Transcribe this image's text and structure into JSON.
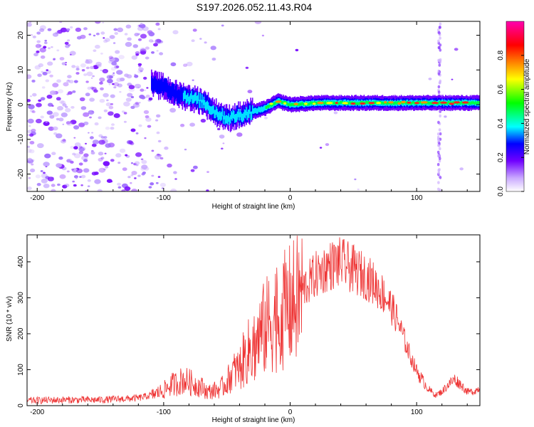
{
  "title": "S197.2026.052.11.43.R04",
  "chart_data": [
    {
      "type": "heatmap",
      "name": "spectrogram",
      "xlabel": "Height of straight line (km)",
      "ylabel": "Frequency (Hz)",
      "xlim": [
        -208,
        150
      ],
      "ylim": [
        -25,
        24
      ],
      "xticks": [
        -200,
        -100,
        0,
        100
      ],
      "yticks": [
        -20,
        -10,
        0,
        10,
        20
      ],
      "colorbar": {
        "label": "Normalized spectral amplitude",
        "range": [
          0,
          1
        ],
        "ticks": [
          0,
          0.2,
          0.4,
          0.6,
          0.8
        ],
        "tick_labels": [
          "0.0",
          "0.2",
          "0.4",
          "0.6",
          "0.8"
        ],
        "colors": [
          "#ffffff",
          "#d9b3ff",
          "#7000ff",
          "#0000ff",
          "#00ffff",
          "#00ff00",
          "#ffff00",
          "#ff8000",
          "#ff0000",
          "#ff00b0"
        ]
      },
      "ridge": {
        "x": [
          -110,
          -100,
          -90,
          -80,
          -70,
          -60,
          -50,
          -40,
          -30,
          -20,
          -10,
          0,
          20,
          50,
          100,
          150
        ],
        "y": [
          6,
          5,
          3,
          2,
          1,
          -2,
          -4,
          -3,
          -2,
          -1,
          1,
          0,
          0.5,
          0.5,
          0.5,
          0.5
        ]
      },
      "vertical_streak_x": 118
    },
    {
      "type": "line",
      "name": "snr",
      "xlabel": "Height of straight line (km)",
      "ylabel": "SNR (10 * v/v)",
      "xlim": [
        -208,
        150
      ],
      "ylim": [
        0,
        475
      ],
      "xticks": [
        -200,
        -100,
        0,
        100
      ],
      "yticks": [
        0,
        100,
        200,
        300,
        400
      ],
      "color": "#ee3333",
      "envelope": {
        "x": [
          -208,
          -180,
          -150,
          -120,
          -110,
          -100,
          -95,
          -90,
          -85,
          -80,
          -75,
          -70,
          -65,
          -60,
          -55,
          -50,
          -45,
          -40,
          -35,
          -30,
          -25,
          -20,
          -15,
          -10,
          -5,
          0,
          5,
          10,
          15,
          20,
          25,
          30,
          35,
          40,
          45,
          50,
          55,
          60,
          65,
          70,
          75,
          80,
          85,
          90,
          95,
          100,
          105,
          110,
          115,
          120,
          125,
          130,
          135,
          140,
          145,
          150
        ],
        "y": [
          15,
          17,
          17,
          22,
          30,
          45,
          60,
          65,
          75,
          70,
          62,
          55,
          40,
          45,
          50,
          70,
          100,
          110,
          150,
          170,
          200,
          230,
          250,
          270,
          280,
          295,
          310,
          330,
          350,
          370,
          380,
          395,
          400,
          405,
          395,
          385,
          375,
          365,
          350,
          330,
          310,
          280,
          240,
          190,
          140,
          100,
          70,
          45,
          30,
          40,
          60,
          75,
          60,
          40,
          40,
          50
        ]
      }
    }
  ]
}
